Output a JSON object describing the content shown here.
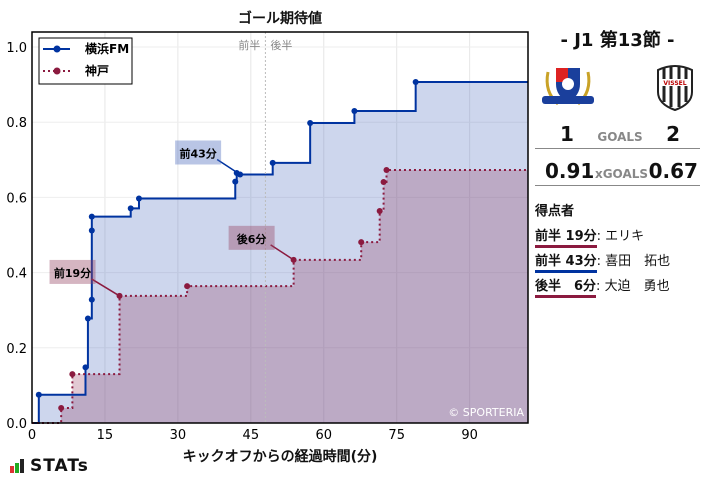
{
  "chart_data": {
    "type": "line",
    "title": "ゴール期待値",
    "xlabel": "キックオフからの経過時間(分)",
    "ylabel": "",
    "xlim": [
      0,
      102
    ],
    "ylim": [
      0,
      1.04
    ],
    "xticks": [
      0,
      15,
      30,
      45,
      60,
      75,
      90
    ],
    "yticks": [
      "0.0",
      "0.2",
      "0.4",
      "0.6",
      "0.8",
      "1.0"
    ],
    "grid": true,
    "legend": "top-left",
    "halftime": {
      "x": 48,
      "labels": [
        "前半",
        "後半"
      ]
    },
    "watermark": "© SPORTERIA",
    "series": [
      {
        "name": "横浜FM",
        "color": "#0033a0",
        "style": "solid",
        "points": [
          [
            1.4,
            0.075
          ],
          [
            11,
            0.148
          ],
          [
            11.5,
            0.278
          ],
          [
            12.3,
            0.328
          ],
          [
            12.3,
            0.512
          ],
          [
            12.3,
            0.549
          ],
          [
            20.3,
            0.571
          ],
          [
            22,
            0.597
          ],
          [
            41.8,
            0.642
          ],
          [
            42.1,
            0.665
          ],
          [
            42.8,
            0.661
          ],
          [
            49.5,
            0.692
          ],
          [
            57.2,
            0.798
          ],
          [
            66.3,
            0.83
          ],
          [
            78.9,
            0.907
          ]
        ]
      },
      {
        "name": "神戸",
        "color": "#8b1a3f",
        "style": "dotted",
        "points": [
          [
            6,
            0.04
          ],
          [
            8.3,
            0.13
          ],
          [
            18,
            0.338
          ],
          [
            31.9,
            0.364
          ],
          [
            53.8,
            0.434
          ],
          [
            67.7,
            0.481
          ],
          [
            71.5,
            0.564
          ],
          [
            72.3,
            0.641
          ],
          [
            72.9,
            0.673
          ]
        ]
      }
    ],
    "annotations": [
      {
        "text": "前43分",
        "x": 42.8,
        "y": 0.661,
        "team": 0
      },
      {
        "text": "前19分",
        "x": 18,
        "y": 0.338,
        "team": 1
      },
      {
        "text": "後6分",
        "x": 53.8,
        "y": 0.434,
        "team": 1
      }
    ]
  },
  "brand": "STATs",
  "panel": {
    "round": "-  J1 第13節  -",
    "home_logo": "yokohama-f-marinos-crest",
    "away_logo": "vissel-kobe-crest",
    "away_logo_text": "VISSEL",
    "home_goals": "1",
    "goals_label": "GOALS",
    "away_goals": "2",
    "home_xg": "0.91",
    "xg_label": "xGOALS",
    "away_xg": "0.67",
    "scorers_title": "得点者",
    "scorers": [
      {
        "when": "前半 19分",
        "name": "エリキ",
        "color": "#8b1a3f"
      },
      {
        "when": "前半 43分",
        "name": "喜田　拓也",
        "color": "#0033a0"
      },
      {
        "when": "後半　6分",
        "name": "大迫　勇也",
        "color": "#8b1a3f"
      }
    ]
  }
}
